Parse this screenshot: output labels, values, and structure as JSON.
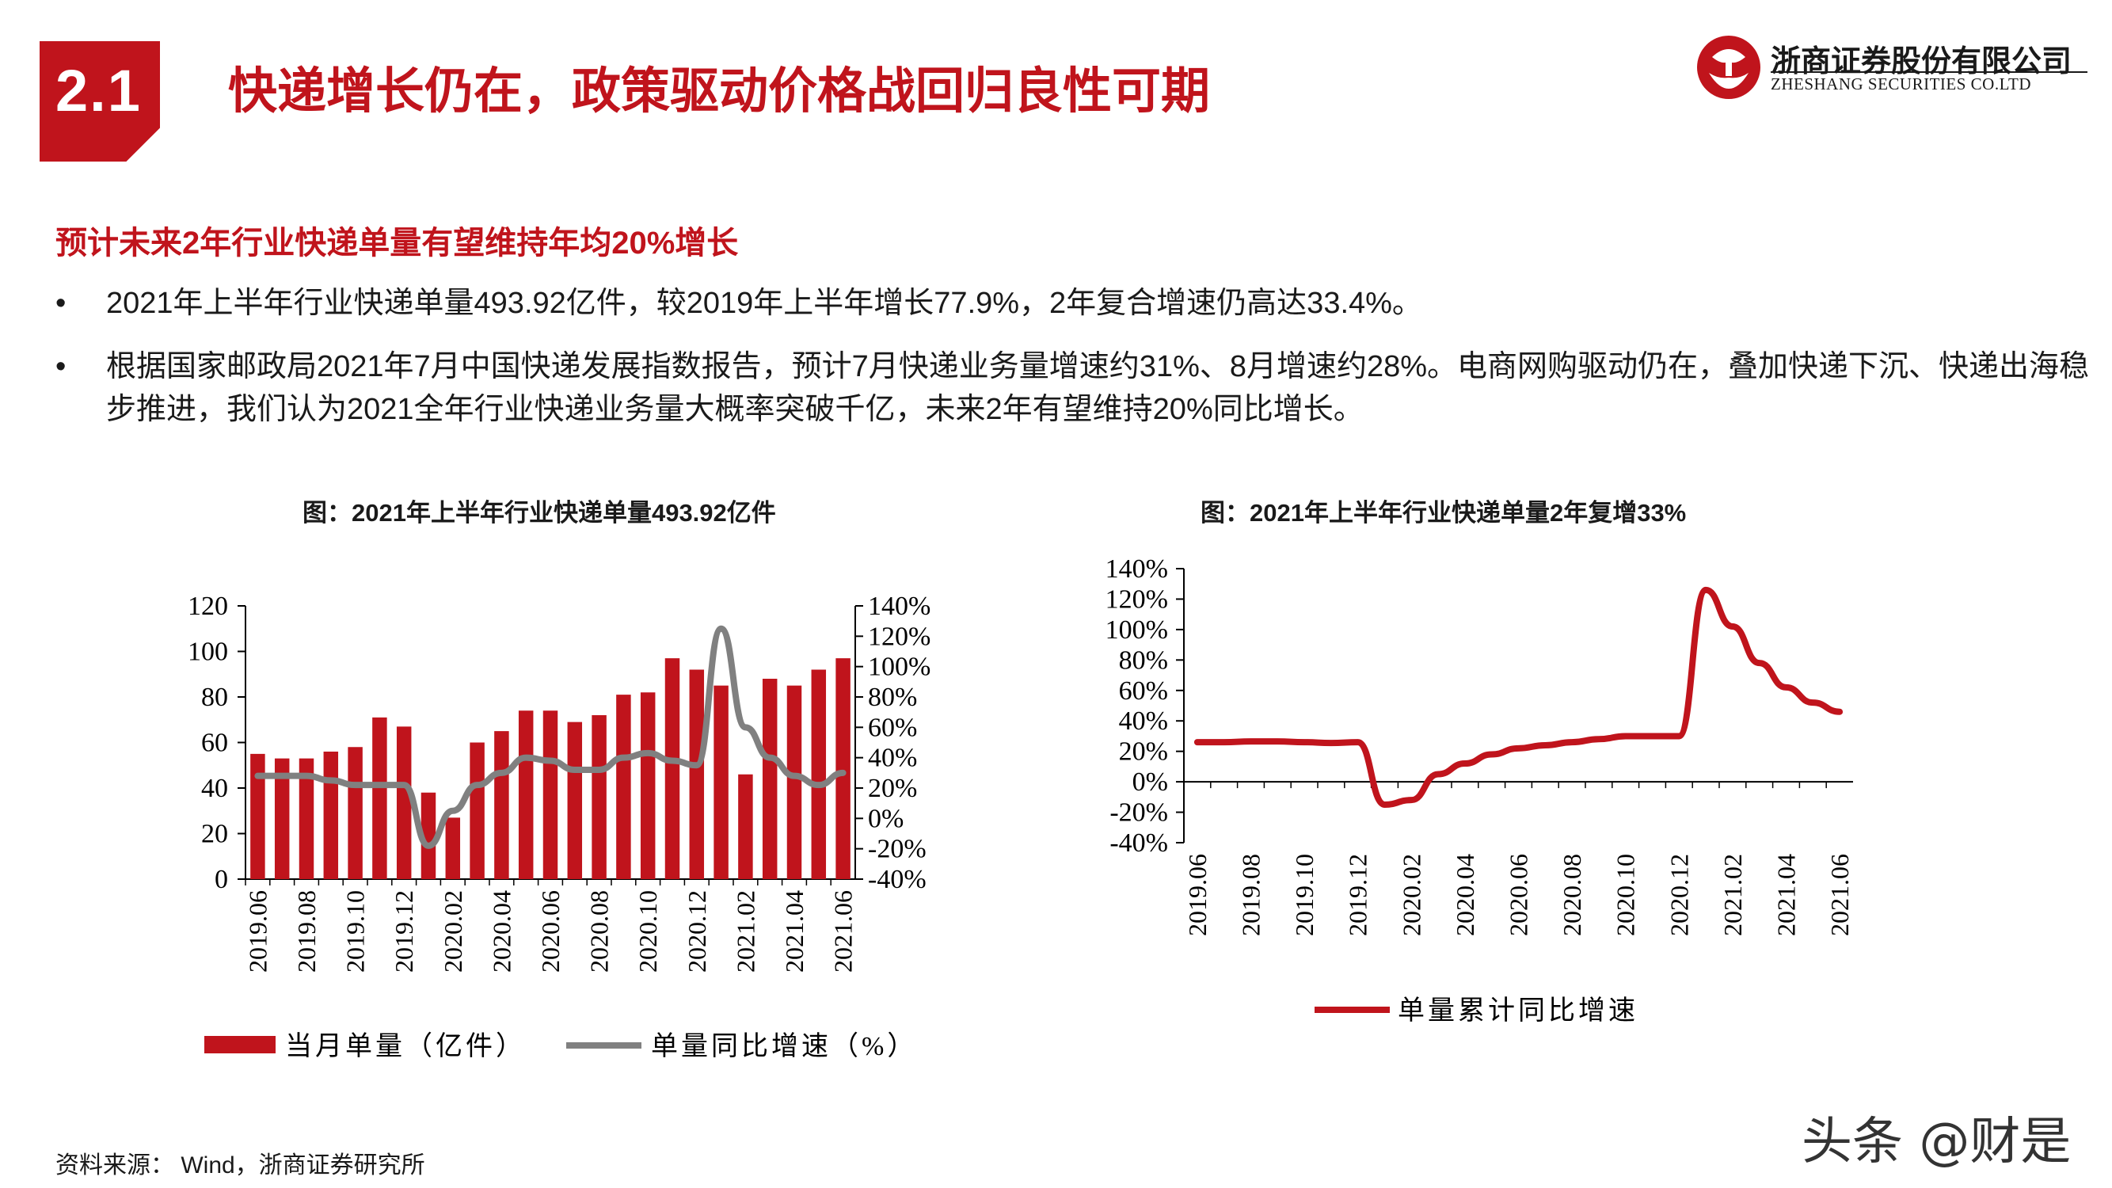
{
  "header": {
    "section_number": "2.1",
    "title": "快递增长仍在，政策驱动价格战回归良性可期",
    "logo_cn": "浙商证券股份有限公司",
    "logo_en": "ZHESHANG SECURITIES CO.LTD",
    "brand_color": "#c0141c"
  },
  "subheading": "预计未来2年行业快递单量有望维持年均20%增长",
  "bullets": [
    {
      "marker": "•",
      "text": "2021年上半年行业快递单量493.92亿件，较2019年上半年增长77.9%，2年复合增速仍高达33.4%。"
    },
    {
      "marker": "•",
      "text": "根据国家邮政局2021年7月中国快递发展指数报告，预计7月快递业务量增速约31%、8月增速约28%。电商网购驱动仍在，叠加快递下沉、快递出海稳步推进，我们认为2021全年行业快递业务量大概率突破千亿，未来2年有望维持20%同比增长。"
    }
  ],
  "chart_data": [
    {
      "type": "bar",
      "title": "图：2021年上半年行业快递单量493.92亿件",
      "x": [
        "2019.06",
        "2019.07",
        "2019.08",
        "2019.09",
        "2019.10",
        "2019.11",
        "2019.12",
        "2020.01",
        "2020.02",
        "2020.03",
        "2020.04",
        "2020.05",
        "2020.06",
        "2020.07",
        "2020.08",
        "2020.09",
        "2020.10",
        "2020.11",
        "2020.12",
        "2021.01",
        "2021.02",
        "2021.03",
        "2021.04",
        "2021.05",
        "2021.06"
      ],
      "xticks": [
        "2019.06",
        "2019.08",
        "2019.10",
        "2019.12",
        "2020.02",
        "2020.04",
        "2020.06",
        "2020.08",
        "2020.10",
        "2020.12",
        "2021.02",
        "2021.04",
        "2021.06"
      ],
      "series": [
        {
          "name": "当月单量（亿件）",
          "axis": "left",
          "kind": "bar",
          "color": "#c0141c",
          "values": [
            55,
            53,
            53,
            56,
            58,
            71,
            67,
            38,
            27,
            60,
            65,
            74,
            74,
            69,
            72,
            81,
            82,
            97,
            92,
            85,
            46,
            88,
            85,
            92,
            97
          ]
        },
        {
          "name": "单量同比增速（%）",
          "axis": "right",
          "kind": "line",
          "color": "#808080",
          "values": [
            28,
            28,
            28,
            25,
            22,
            22,
            22,
            -18,
            5,
            22,
            30,
            40,
            38,
            32,
            32,
            40,
            43,
            38,
            35,
            125,
            60,
            40,
            28,
            22,
            30
          ]
        }
      ],
      "yleft": {
        "ylim": [
          0,
          120
        ],
        "ticks": [
          "0",
          "20",
          "40",
          "60",
          "80",
          "100",
          "120"
        ]
      },
      "yright": {
        "ylim": [
          -40,
          140
        ],
        "ticks": [
          "-40%",
          "-20%",
          "0%",
          "20%",
          "40%",
          "60%",
          "80%",
          "100%",
          "120%",
          "140%"
        ]
      },
      "legend": "bottom"
    },
    {
      "type": "line",
      "title": "图：2021年上半年行业快递单量2年复增33%",
      "x": [
        "2019.06",
        "2019.07",
        "2019.08",
        "2019.09",
        "2019.10",
        "2019.11",
        "2019.12",
        "2020.01",
        "2020.02",
        "2020.03",
        "2020.04",
        "2020.05",
        "2020.06",
        "2020.07",
        "2020.08",
        "2020.09",
        "2020.10",
        "2020.11",
        "2020.12",
        "2021.01",
        "2021.02",
        "2021.03",
        "2021.04",
        "2021.05",
        "2021.06"
      ],
      "xticks": [
        "2019.06",
        "2019.08",
        "2019.10",
        "2019.12",
        "2020.02",
        "2020.04",
        "2020.06",
        "2020.08",
        "2020.10",
        "2020.12",
        "2021.02",
        "2021.04",
        "2021.06"
      ],
      "series": [
        {
          "name": "单量累计同比增速",
          "color": "#c0141c",
          "values": [
            26,
            26,
            26.5,
            26.5,
            26,
            25.5,
            26,
            -15,
            -12,
            5,
            12,
            18,
            22,
            24,
            26,
            28,
            30,
            30,
            30,
            126,
            102,
            78,
            62,
            52,
            46
          ]
        }
      ],
      "ylim": [
        -40,
        140
      ],
      "yticks": [
        "-40%",
        "-20%",
        "0%",
        "20%",
        "40%",
        "60%",
        "80%",
        "100%",
        "120%",
        "140%"
      ],
      "legend": "bottom"
    }
  ],
  "source": "资料来源： Wind，浙商证券研究所",
  "watermark": "头条 @财是"
}
